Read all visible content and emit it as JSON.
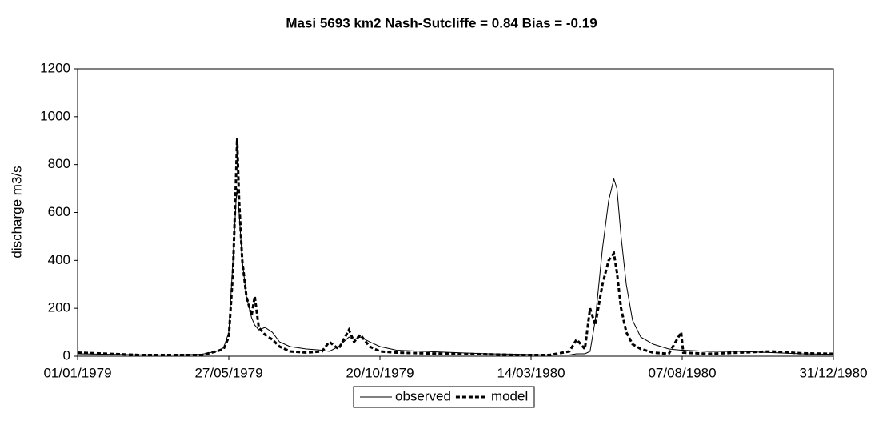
{
  "chart_data": {
    "type": "line",
    "title": "Masi    5693 km2    Nash-Sutcliffe = 0.84    Bias = -0.19",
    "y_label": "discharge  m3/s",
    "x": [
      "01/01/1979",
      "31/01/1979",
      "02/03/1979",
      "01/04/1979",
      "01/05/1979",
      "15/05/1979",
      "22/05/1979",
      "27/05/1979",
      "31/05/1979",
      "03/06/1979",
      "04/06/1979",
      "06/06/1979",
      "09/06/1979",
      "13/06/1979",
      "18/06/1979",
      "21/06/1979",
      "25/06/1979",
      "01/07/1979",
      "08/07/1979",
      "15/07/1979",
      "25/07/1979",
      "10/08/1979",
      "25/08/1979",
      "01/09/1979",
      "10/09/1979",
      "20/09/1979",
      "25/09/1979",
      "01/10/1979",
      "10/10/1979",
      "20/10/1979",
      "05/11/1979",
      "01/12/1979",
      "01/01/1980",
      "01/02/1980",
      "01/03/1980",
      "01/04/1980",
      "20/04/1980",
      "27/04/1980",
      "05/05/1980",
      "10/05/1980",
      "15/05/1980",
      "22/05/1980",
      "28/05/1980",
      "02/06/1980",
      "05/06/1980",
      "09/06/1980",
      "14/06/1980",
      "20/06/1980",
      "28/06/1980",
      "10/07/1980",
      "25/07/1980",
      "06/08/1980",
      "08/08/1980",
      "01/09/1980",
      "01/10/1980",
      "01/11/1980",
      "01/12/1980",
      "31/12/1980"
    ],
    "series": [
      {
        "name": "observed",
        "color": "#000000",
        "dash": false,
        "values": [
          10,
          8,
          6,
          5,
          8,
          20,
          35,
          100,
          400,
          650,
          700,
          600,
          400,
          250,
          160,
          130,
          110,
          120,
          100,
          60,
          40,
          30,
          25,
          20,
          40,
          80,
          70,
          80,
          60,
          40,
          25,
          20,
          15,
          10,
          8,
          5,
          5,
          10,
          10,
          20,
          150,
          450,
          650,
          740,
          700,
          500,
          300,
          150,
          80,
          50,
          30,
          25,
          25,
          20,
          20,
          15,
          10,
          8
        ]
      },
      {
        "name": "model",
        "color": "#000000",
        "dash": true,
        "values": [
          15,
          10,
          5,
          5,
          5,
          20,
          30,
          80,
          350,
          750,
          910,
          650,
          400,
          250,
          170,
          250,
          120,
          90,
          70,
          40,
          20,
          15,
          20,
          60,
          30,
          110,
          60,
          90,
          40,
          20,
          15,
          12,
          10,
          8,
          5,
          5,
          20,
          70,
          30,
          200,
          130,
          300,
          400,
          430,
          350,
          200,
          100,
          50,
          30,
          15,
          10,
          100,
          15,
          10,
          15,
          20,
          12,
          10
        ]
      }
    ],
    "xlim": [
      "01/01/1979",
      "31/12/1980"
    ],
    "xticks": [
      "01/01/1979",
      "27/05/1979",
      "20/10/1979",
      "14/03/1980",
      "07/08/1980",
      "31/12/1980"
    ],
    "ylim": [
      0,
      1200
    ],
    "yticks": [
      0,
      200,
      400,
      600,
      800,
      1000,
      1200
    ],
    "legend": "bottom"
  }
}
